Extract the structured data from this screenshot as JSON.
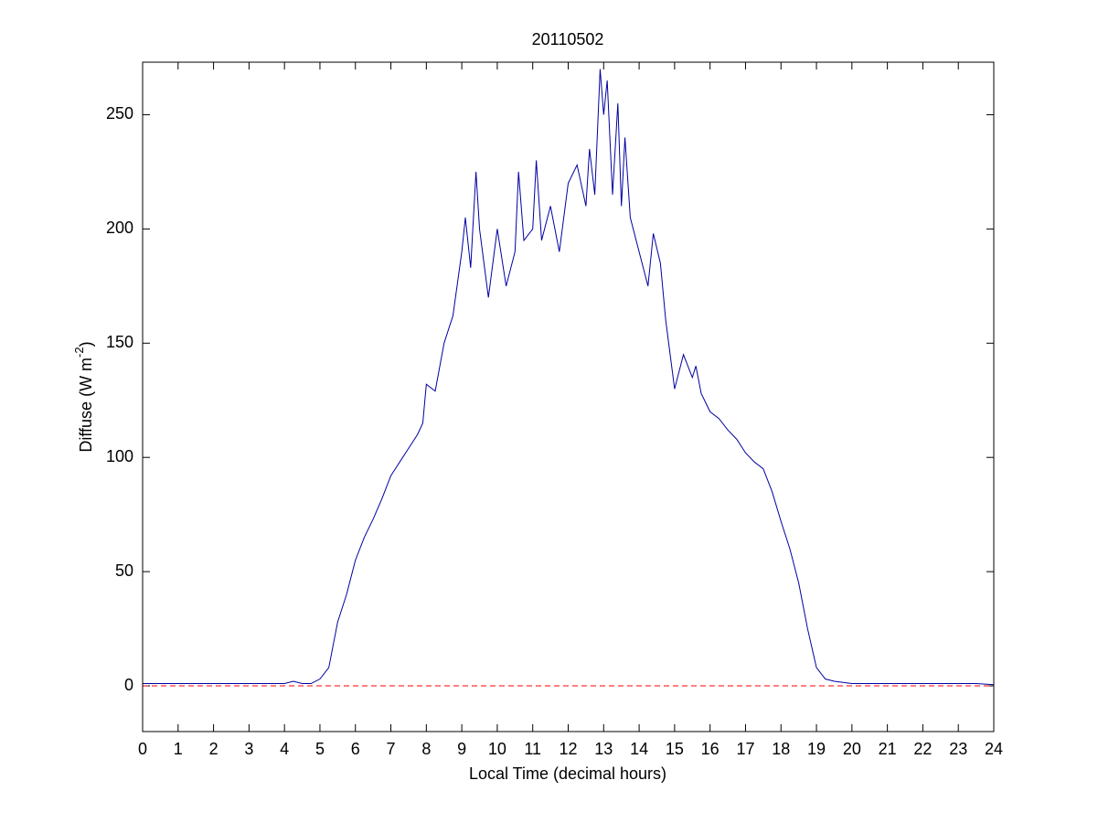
{
  "chart_data": {
    "type": "line",
    "title": "20110502",
    "x_label": "Local Time (decimal hours)",
    "y_label": "Diffuse (W m",
    "y_label_exponent": "-2",
    "y_label_suffix": ")",
    "xlim": [
      0,
      24
    ],
    "xticks": [
      0,
      1,
      2,
      3,
      4,
      5,
      6,
      7,
      8,
      9,
      10,
      11,
      12,
      13,
      14,
      15,
      16,
      17,
      18,
      19,
      20,
      21,
      22,
      23,
      24
    ],
    "ylim": [
      -20,
      273
    ],
    "yticks": [
      0,
      50,
      100,
      150,
      200,
      250
    ],
    "reference_line": {
      "value": 0,
      "color": "#ff0000"
    },
    "series": [
      {
        "color": "#0000a0",
        "x": [
          0,
          0.5,
          1,
          1.5,
          2,
          2.5,
          3,
          3.5,
          4,
          4.25,
          4.5,
          4.75,
          5,
          5.25,
          5.5,
          5.75,
          6,
          6.25,
          6.5,
          6.75,
          7,
          7.25,
          7.5,
          7.75,
          7.9,
          8,
          8.25,
          8.5,
          8.75,
          9,
          9.1,
          9.25,
          9.4,
          9.5,
          9.75,
          10,
          10.25,
          10.5,
          10.6,
          10.75,
          11,
          11.1,
          11.25,
          11.5,
          11.75,
          12,
          12.25,
          12.5,
          12.6,
          12.75,
          12.9,
          13,
          13.1,
          13.25,
          13.4,
          13.5,
          13.6,
          13.75,
          14,
          14.25,
          14.4,
          14.6,
          14.75,
          15,
          15.25,
          15.5,
          15.6,
          15.75,
          16,
          16.25,
          16.5,
          16.75,
          17,
          17.25,
          17.5,
          17.75,
          18,
          18.25,
          18.5,
          18.75,
          19,
          19.25,
          19.5,
          20,
          20.5,
          21,
          21.5,
          22,
          22.5,
          23,
          23.5,
          24
        ],
        "values": [
          1,
          1,
          1,
          1,
          1,
          1,
          1,
          1,
          1,
          2,
          1,
          1,
          3,
          8,
          28,
          40,
          55,
          65,
          73,
          82,
          92,
          98,
          104,
          110,
          115,
          132,
          129,
          150,
          162,
          190,
          205,
          183,
          225,
          200,
          170,
          200,
          175,
          190,
          225,
          195,
          200,
          230,
          195,
          210,
          190,
          220,
          228,
          210,
          235,
          215,
          270,
          250,
          265,
          215,
          255,
          210,
          240,
          205,
          190,
          175,
          198,
          185,
          160,
          130,
          145,
          135,
          140,
          128,
          120,
          117,
          112,
          108,
          102,
          98,
          95,
          85,
          72,
          60,
          45,
          25,
          8,
          3,
          2,
          1,
          1,
          1,
          1,
          1,
          1,
          1,
          1,
          0.5
        ]
      }
    ]
  }
}
